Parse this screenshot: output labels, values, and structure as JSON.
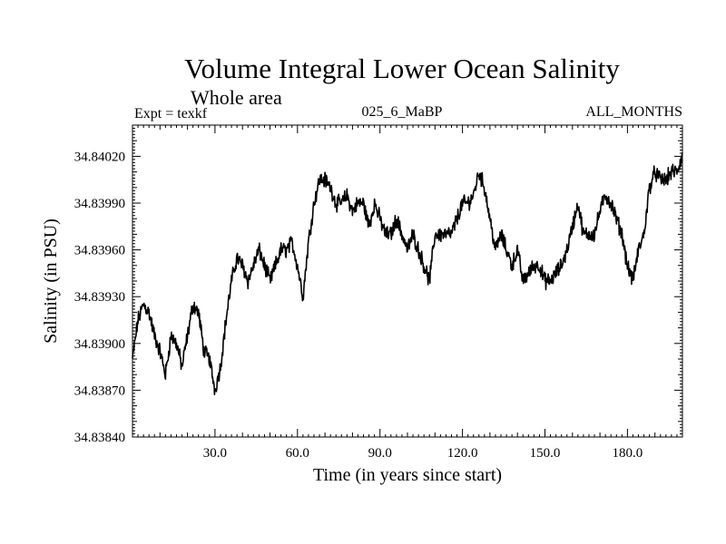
{
  "chart_data": {
    "type": "line",
    "title": "Volume Integral Lower Ocean Salinity",
    "subtitle": "Whole area",
    "expt_label": "Expt = texkf",
    "run_label": "025_6_MaBP",
    "months_label": "ALL_MONTHS",
    "xlabel": "Time (in years since start)",
    "ylabel": "Salinity (in PSU)",
    "xlim": [
      0,
      200
    ],
    "ylim": [
      34.8384,
      34.8404
    ],
    "x_ticks": [
      30,
      60,
      90,
      120,
      150,
      180
    ],
    "x_tick_labels": [
      "30.0",
      "60.0",
      "90.0",
      "120.0",
      "150.0",
      "180.0"
    ],
    "y_ticks": [
      34.8384,
      34.8387,
      34.839,
      34.8393,
      34.8396,
      34.8399,
      34.8402
    ],
    "y_tick_labels": [
      "34.83840",
      "34.83870",
      "34.83900",
      "34.83930",
      "34.83960",
      "34.83990",
      "34.84020"
    ],
    "grid": false,
    "series": [
      {
        "name": "salinity",
        "x": [
          0,
          2,
          4,
          6,
          8,
          10,
          12,
          14,
          16,
          18,
          20,
          22,
          24,
          26,
          28,
          30,
          32,
          34,
          36,
          38,
          40,
          42,
          44,
          46,
          48,
          50,
          52,
          54,
          56,
          58,
          60,
          62,
          64,
          66,
          68,
          70,
          72,
          74,
          76,
          78,
          80,
          82,
          84,
          86,
          88,
          90,
          92,
          94,
          96,
          98,
          100,
          102,
          104,
          106,
          108,
          110,
          112,
          114,
          116,
          118,
          120,
          122,
          124,
          126,
          128,
          130,
          132,
          134,
          136,
          138,
          140,
          142,
          144,
          146,
          148,
          150,
          152,
          154,
          156,
          158,
          160,
          162,
          164,
          166,
          168,
          170,
          172,
          174,
          176,
          178,
          180,
          182,
          184,
          186,
          188,
          190,
          192,
          194,
          196,
          198,
          200
        ],
        "values": [
          34.8389,
          34.83915,
          34.83925,
          34.8392,
          34.83905,
          34.83895,
          34.8388,
          34.83905,
          34.839,
          34.83885,
          34.83905,
          34.83925,
          34.8392,
          34.83895,
          34.8389,
          34.8387,
          34.83885,
          34.83915,
          34.8394,
          34.83955,
          34.8395,
          34.8394,
          34.8395,
          34.8396,
          34.8395,
          34.8394,
          34.8395,
          34.8396,
          34.8396,
          34.83965,
          34.8395,
          34.8393,
          34.83965,
          34.8399,
          34.84005,
          34.84005,
          34.84,
          34.8399,
          34.8399,
          34.83995,
          34.83985,
          34.8399,
          34.8399,
          34.83975,
          34.8399,
          34.8398,
          34.8397,
          34.8397,
          34.8398,
          34.8397,
          34.8396,
          34.8397,
          34.8396,
          34.8395,
          34.8394,
          34.8397,
          34.8397,
          34.8397,
          34.8397,
          34.8398,
          34.8399,
          34.8399,
          34.83995,
          34.8401,
          34.84,
          34.8398,
          34.8396,
          34.8397,
          34.8396,
          34.8395,
          34.8396,
          34.8394,
          34.83945,
          34.8395,
          34.8395,
          34.8394,
          34.8394,
          34.83945,
          34.8395,
          34.8396,
          34.83975,
          34.8399,
          34.8397,
          34.8397,
          34.8397,
          34.83985,
          34.83995,
          34.8399,
          34.8398,
          34.8397,
          34.8395,
          34.8394,
          34.8396,
          34.8397,
          34.84,
          34.8401,
          34.84005,
          34.84005,
          34.8401,
          34.8401,
          34.8402
        ]
      }
    ]
  }
}
